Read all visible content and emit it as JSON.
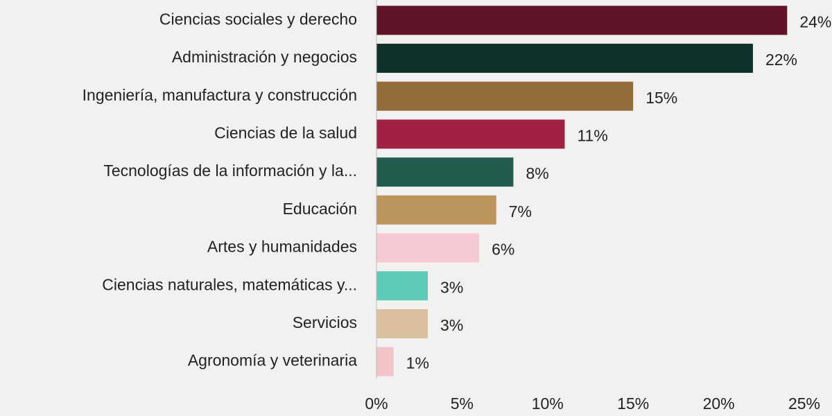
{
  "chart_data": {
    "type": "barh",
    "categories": [
      "Ciencias sociales y derecho",
      "Administración y negocios",
      "Ingeniería, manufactura y construcción",
      "Ciencias de la salud",
      "Tecnologías de la información y la...",
      "Educación",
      "Artes y humanidades",
      "Ciencias naturales, matemáticas y...",
      "Servicios",
      "Agronomía y veterinaria"
    ],
    "values": [
      24,
      22,
      15,
      11,
      8,
      7,
      6,
      3,
      3,
      1
    ],
    "value_labels": [
      "24%",
      "22%",
      "15%",
      "11%",
      "8%",
      "7%",
      "6%",
      "3%",
      "3%",
      "1%"
    ],
    "colors": [
      "#611427",
      "#10312b",
      "#956c3c",
      "#a02142",
      "#235b4e",
      "#bc955c",
      "#f6c9d4",
      "#5dcab5",
      "#d9bf9e",
      "#f2c4c8"
    ],
    "xlim": [
      0,
      25
    ],
    "xticks": [
      {
        "value": 0,
        "label": "0%"
      },
      {
        "value": 5,
        "label": "5%"
      },
      {
        "value": 10,
        "label": "10%"
      },
      {
        "value": 15,
        "label": "15%"
      },
      {
        "value": 20,
        "label": "20%"
      },
      {
        "value": 25,
        "label": "25%"
      }
    ]
  }
}
